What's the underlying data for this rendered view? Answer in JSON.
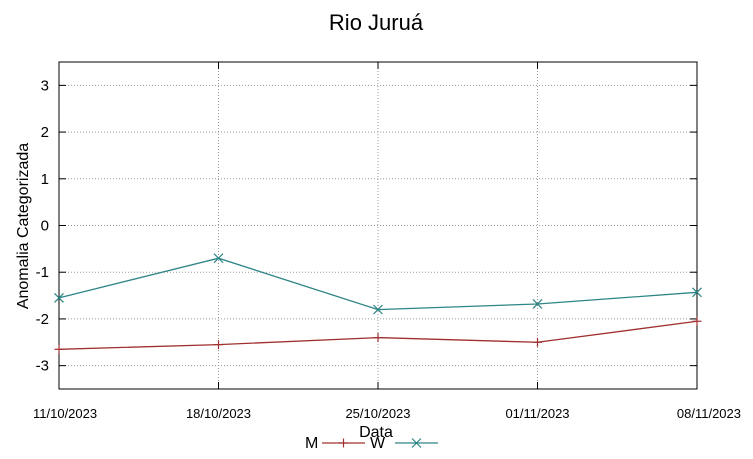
{
  "chart_data": {
    "type": "line",
    "title": "Rio Juruá",
    "xlabel": "Data",
    "ylabel": "Anomalia Categorizada",
    "categories": [
      "11/10/2023",
      "18/10/2023",
      "25/10/2023",
      "01/11/2023",
      "08/11/2023"
    ],
    "yticks": [
      "3",
      "2",
      "1",
      "0",
      "-1",
      "-2",
      "-3"
    ],
    "ylim": [
      -3.5,
      3.5
    ],
    "grid": true,
    "legend_position": "bottom",
    "series": [
      {
        "name": "M",
        "color": "#a0302f",
        "marker": "plus",
        "values": [
          -2.65,
          -2.55,
          -2.4,
          -2.5,
          -2.05
        ]
      },
      {
        "name": "W",
        "color": "#2e8585",
        "marker": "x",
        "values": [
          -1.55,
          -0.7,
          -1.8,
          -1.68,
          -1.43
        ]
      }
    ]
  }
}
